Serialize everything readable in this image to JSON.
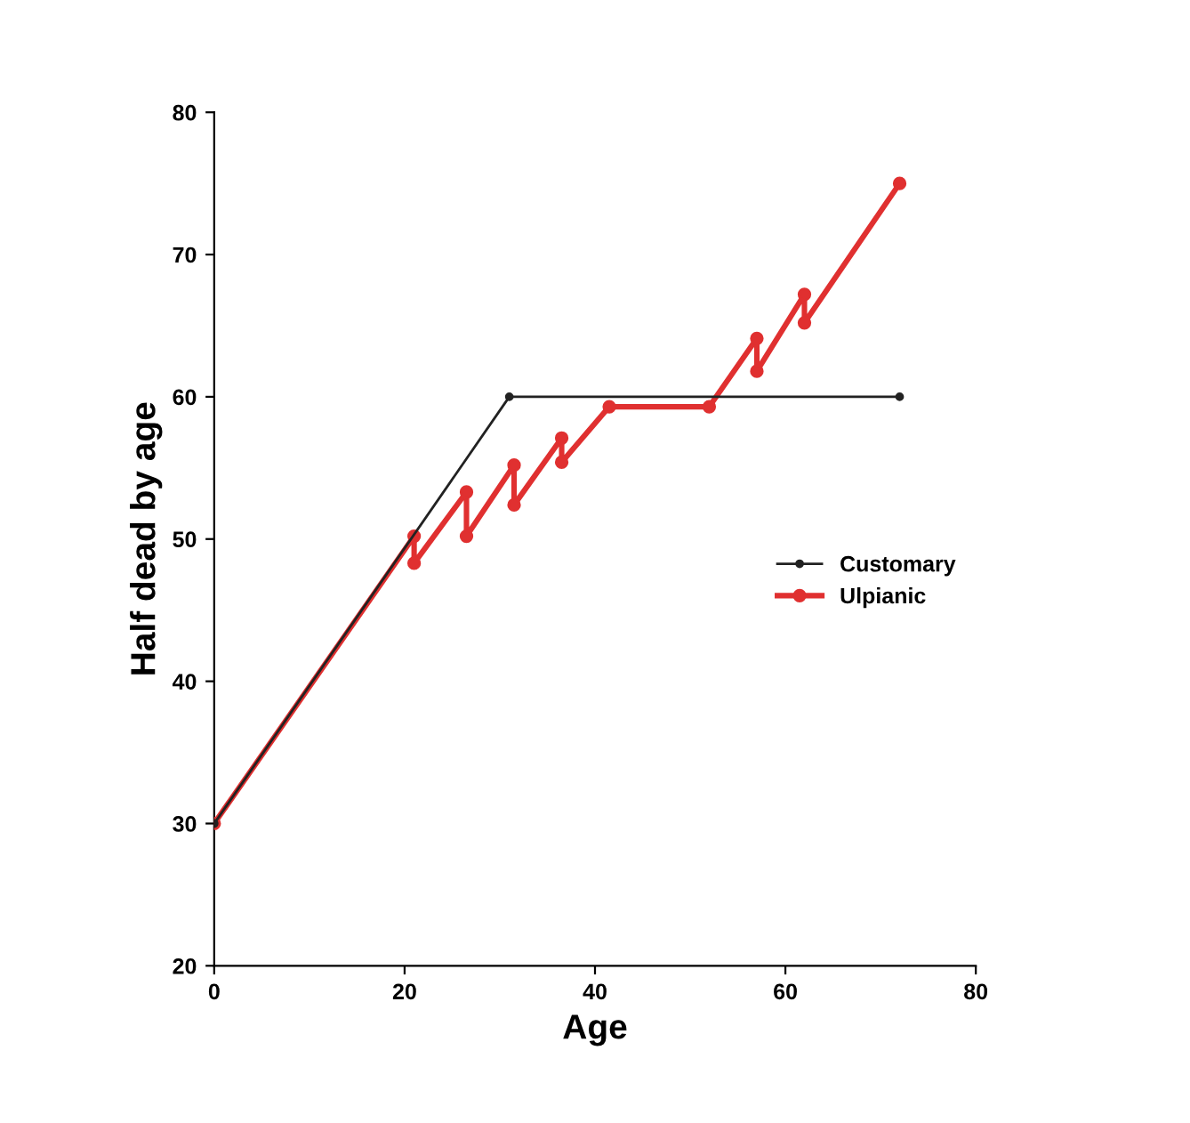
{
  "chart_data": {
    "type": "line",
    "xlabel": "Age",
    "ylabel": "Half dead by age",
    "xlim": [
      0,
      80
    ],
    "xticks": [
      0,
      20,
      40,
      60,
      80
    ],
    "ylim": [
      20,
      80
    ],
    "yticks": [
      20,
      30,
      40,
      50,
      60,
      70,
      80
    ],
    "grid": false,
    "legend": "center right",
    "marker": "circle",
    "line_style": "solid",
    "series": [
      {
        "name": "Customary",
        "color": "#222222",
        "x": [
          0,
          31,
          72
        ],
        "values": [
          30,
          60,
          60
        ]
      },
      {
        "name": "Ulpianic",
        "color": "#e03030",
        "x": [
          0,
          21,
          21,
          26.5,
          26.5,
          31.5,
          31.5,
          36.5,
          36.5,
          41.5,
          52,
          57,
          57,
          62,
          62,
          72
        ],
        "values": [
          30,
          50.2,
          48.3,
          53.3,
          50.2,
          55.2,
          52.4,
          57.1,
          55.4,
          59.3,
          59.3,
          64.1,
          61.8,
          67.2,
          65.2,
          75
        ]
      }
    ]
  }
}
